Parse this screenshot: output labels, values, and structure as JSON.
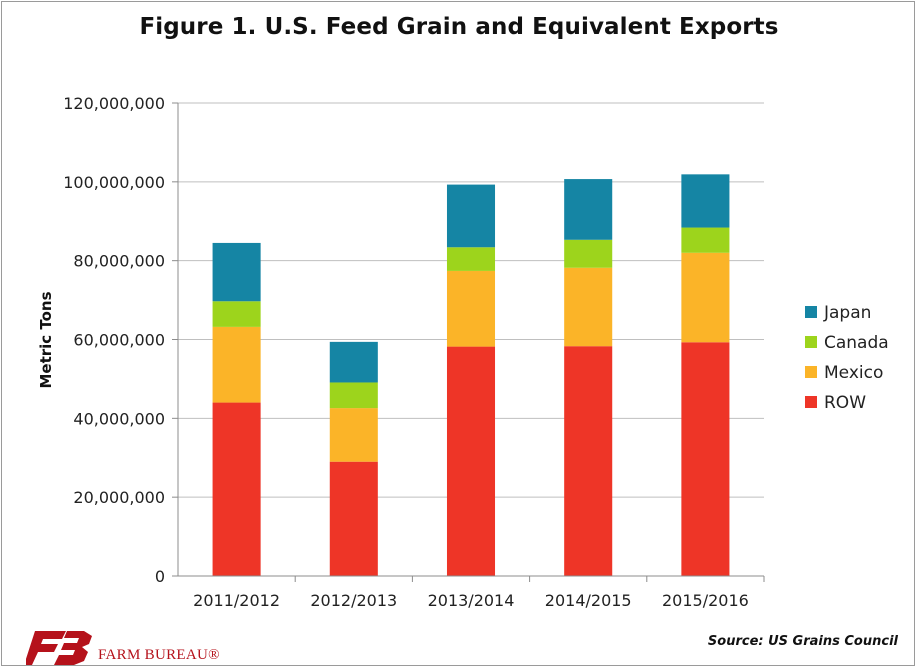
{
  "title": "Figure 1. U.S. Feed Grain and Equivalent Exports",
  "source": "Source: US Grains Council",
  "logo": {
    "text": "FARM BUREAU®",
    "mark": "FB"
  },
  "colors": {
    "Japan": "#1585a4",
    "Canada": "#9dd41c",
    "Mexico": "#fbb428",
    "ROW": "#ee3527",
    "grid": "#bfbfbf",
    "axis": "#8c8c8c",
    "logo": "#b5121b"
  },
  "chart_data": {
    "type": "bar",
    "stacked": true,
    "title": "Figure 1. U.S. Feed Grain and Equivalent Exports",
    "ylabel": "Metric Tons",
    "xlabel": "",
    "categories": [
      "2011/2012",
      "2012/2013",
      "2013/2014",
      "2014/2015",
      "2015/2016"
    ],
    "ylim": [
      0,
      120000000
    ],
    "yticks": [
      0,
      20000000,
      40000000,
      60000000,
      80000000,
      100000000,
      120000000
    ],
    "ytick_labels": [
      "0",
      "20,000,000",
      "40,000,000",
      "60,000,000",
      "80,000,000",
      "100,000,000",
      "120,000,000"
    ],
    "grid": true,
    "legend_position": "right",
    "series": [
      {
        "name": "ROW",
        "values": [
          44000000,
          29000000,
          58200000,
          58300000,
          59300000
        ]
      },
      {
        "name": "Mexico",
        "values": [
          19200000,
          13600000,
          19200000,
          19900000,
          22700000
        ]
      },
      {
        "name": "Canada",
        "values": [
          6500000,
          6500000,
          6000000,
          7100000,
          6400000
        ]
      },
      {
        "name": "Japan",
        "values": [
          14800000,
          10300000,
          15900000,
          15400000,
          13500000
        ]
      }
    ],
    "legend_order": [
      "Japan",
      "Canada",
      "Mexico",
      "ROW"
    ]
  }
}
